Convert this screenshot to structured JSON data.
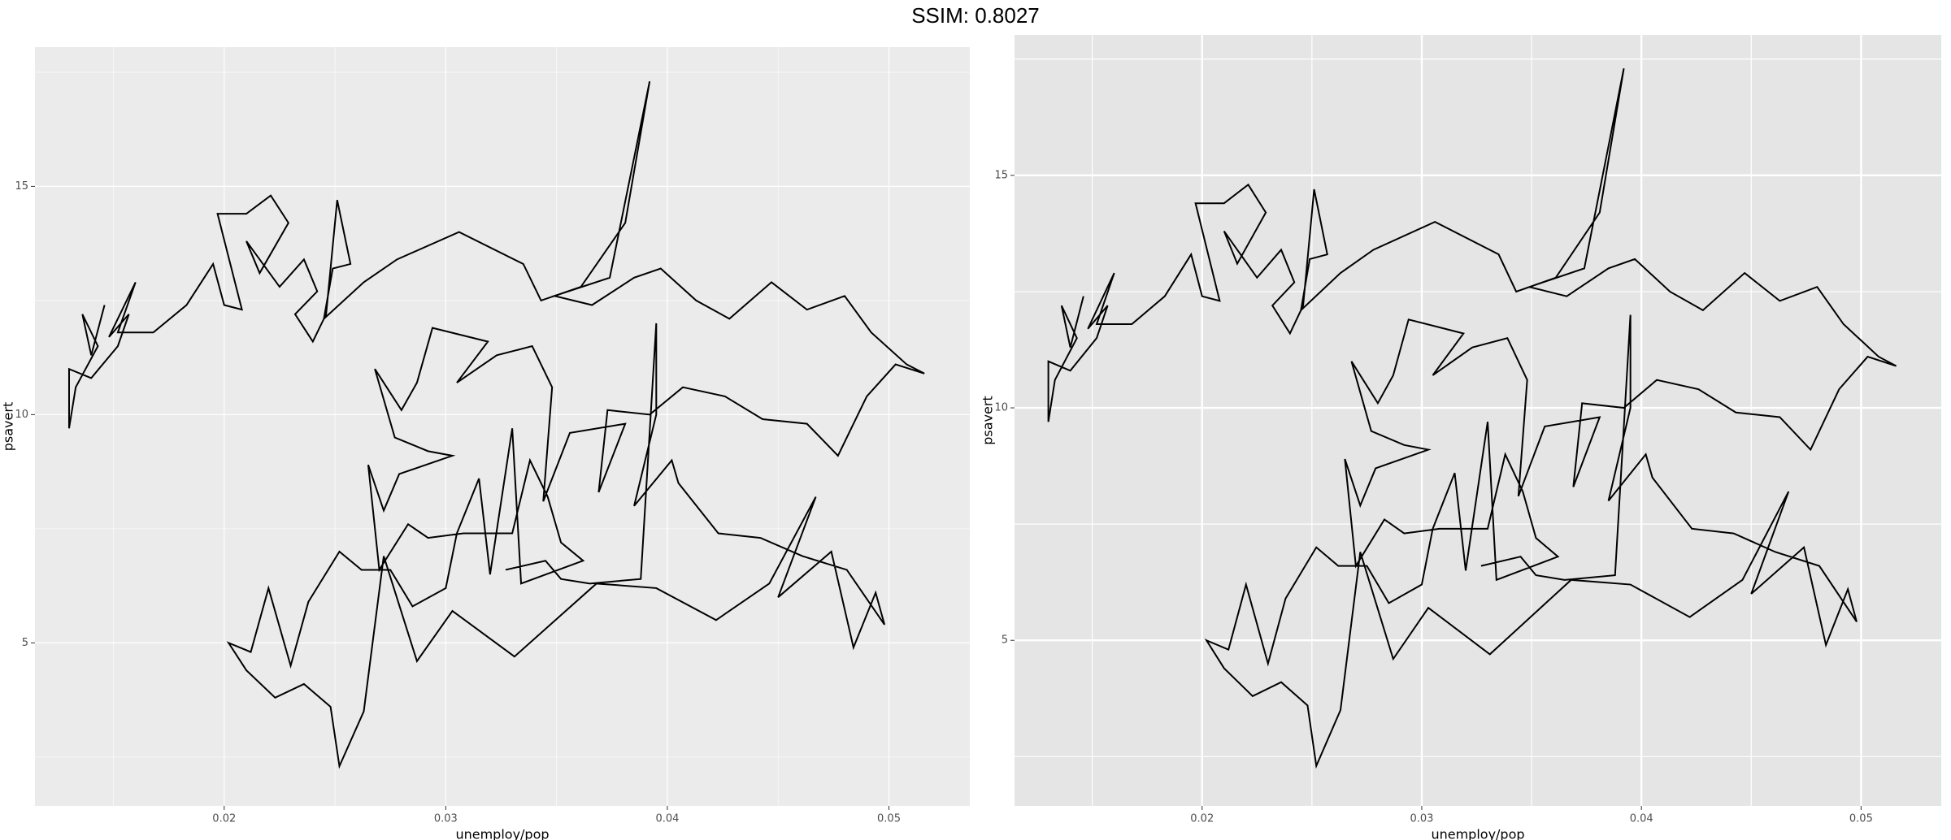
{
  "title": "SSIM: 0.8027",
  "chart_data": [
    {
      "type": "line",
      "xlabel": "unemploy/pop",
      "ylabel": "psavert",
      "background": "#EBEBEB",
      "grid": true,
      "xlim": [
        0.01146,
        0.05365
      ],
      "ylim": [
        1.43,
        18.05
      ],
      "xticks": [
        0.02,
        0.03,
        0.04,
        0.05
      ],
      "yticks": [
        5,
        10,
        15
      ],
      "minor_xticks": [
        0.015,
        0.025,
        0.035,
        0.045
      ],
      "minor_yticks": [
        2.5,
        7.5,
        12.5,
        17.5
      ],
      "x": [
        0.0146,
        0.014,
        0.0136,
        0.0143,
        0.0133,
        0.013,
        0.013,
        0.014,
        0.0152,
        0.0157,
        0.0148,
        0.016,
        0.0152,
        0.0168,
        0.0183,
        0.0195,
        0.02,
        0.0208,
        0.0197,
        0.021,
        0.0221,
        0.0229,
        0.0216,
        0.021,
        0.0225,
        0.0236,
        0.0242,
        0.0232,
        0.024,
        0.0246,
        0.0251,
        0.0257,
        0.0249,
        0.0245,
        0.0263,
        0.0278,
        0.0306,
        0.0335,
        0.0343,
        0.0361,
        0.0381,
        0.0392,
        0.0374,
        0.0349,
        0.0366,
        0.0385,
        0.0397,
        0.0413,
        0.0428,
        0.0447,
        0.0463,
        0.048,
        0.0492,
        0.0508,
        0.0516,
        0.0503,
        0.049,
        0.0477,
        0.0463,
        0.0443,
        0.0426,
        0.0407,
        0.0392,
        0.0373,
        0.0369,
        0.0381,
        0.0356,
        0.0344,
        0.0348,
        0.0339,
        0.0323,
        0.0305,
        0.0319,
        0.0294,
        0.0287,
        0.028,
        0.0268,
        0.0277,
        0.0292,
        0.0303,
        0.0279,
        0.0272,
        0.0265,
        0.027,
        0.0283,
        0.0292,
        0.0308,
        0.033,
        0.0338,
        0.0346,
        0.0352,
        0.0362,
        0.0334,
        0.033,
        0.032,
        0.0315,
        0.0305,
        0.03,
        0.0285,
        0.0275,
        0.0262,
        0.0252,
        0.0238,
        0.023,
        0.022,
        0.0212,
        0.0202,
        0.021,
        0.0223,
        0.0236,
        0.0248,
        0.0252,
        0.0263,
        0.0272,
        0.0287,
        0.0303,
        0.0331,
        0.0368,
        0.0395,
        0.0422,
        0.0446,
        0.0467,
        0.045,
        0.0474,
        0.0484,
        0.0494,
        0.0498,
        0.0481,
        0.0461,
        0.0442,
        0.0423,
        0.0405,
        0.0402,
        0.0385,
        0.0395,
        0.0395,
        0.0388,
        0.0365,
        0.0352,
        0.0345,
        0.0327
      ],
      "series": [
        {
          "color": "#000000",
          "values": [
            12.4,
            11.3,
            12.2,
            11.5,
            10.6,
            9.7,
            11.0,
            10.8,
            11.5,
            12.2,
            11.7,
            12.9,
            11.8,
            11.8,
            12.4,
            13.3,
            12.4,
            12.3,
            14.4,
            14.4,
            14.8,
            14.2,
            13.1,
            13.8,
            12.8,
            13.4,
            12.7,
            12.2,
            11.6,
            12.2,
            14.7,
            13.3,
            13.2,
            12.1,
            12.9,
            13.4,
            14.0,
            13.3,
            12.5,
            12.8,
            14.2,
            17.3,
            13.0,
            12.6,
            12.4,
            13.0,
            13.2,
            12.5,
            12.1,
            12.9,
            12.3,
            12.6,
            11.8,
            11.1,
            10.9,
            11.1,
            10.4,
            9.1,
            9.8,
            9.9,
            10.4,
            10.6,
            10.0,
            10.1,
            8.3,
            9.8,
            9.6,
            8.1,
            10.6,
            11.5,
            11.3,
            10.7,
            11.6,
            11.9,
            10.7,
            10.1,
            11.0,
            9.5,
            9.2,
            9.1,
            8.7,
            7.9,
            8.9,
            6.6,
            7.6,
            7.3,
            7.4,
            7.4,
            9.0,
            8.2,
            7.2,
            6.8,
            6.3,
            9.7,
            6.5,
            8.6,
            7.4,
            6.2,
            5.8,
            6.6,
            6.6,
            7.0,
            5.9,
            4.5,
            6.2,
            4.8,
            5.0,
            4.4,
            3.8,
            4.1,
            3.6,
            2.3,
            3.5,
            6.9,
            4.6,
            5.7,
            4.7,
            6.3,
            6.2,
            5.5,
            6.3,
            8.2,
            6.0,
            7.0,
            4.9,
            6.1,
            5.4,
            6.6,
            6.9,
            7.3,
            7.4,
            8.5,
            9.0,
            8.0,
            10.0,
            12.0,
            6.4,
            6.3,
            6.4,
            6.8,
            6.6
          ]
        }
      ]
    },
    {
      "type": "line",
      "xlabel": "unemploy/pop",
      "ylabel": "psavert",
      "background": "#E5E5E5",
      "grid": true,
      "xlim": [
        0.01146,
        0.05365
      ],
      "ylim": [
        1.44,
        18.02
      ],
      "xticks": [
        0.02,
        0.03,
        0.04,
        0.05
      ],
      "yticks": [
        5,
        10,
        15
      ],
      "minor_xticks": [
        0.015,
        0.025,
        0.035,
        0.045
      ],
      "minor_yticks": [
        2.5,
        7.5,
        12.5,
        17.5
      ],
      "x": [
        0.0146,
        0.014,
        0.0136,
        0.0143,
        0.0133,
        0.013,
        0.013,
        0.014,
        0.0152,
        0.0157,
        0.0148,
        0.016,
        0.0152,
        0.0168,
        0.0183,
        0.0195,
        0.02,
        0.0208,
        0.0197,
        0.021,
        0.0221,
        0.0229,
        0.0216,
        0.021,
        0.0225,
        0.0236,
        0.0242,
        0.0232,
        0.024,
        0.0246,
        0.0251,
        0.0257,
        0.0249,
        0.0245,
        0.0263,
        0.0278,
        0.0306,
        0.0335,
        0.0343,
        0.0361,
        0.0381,
        0.0392,
        0.0374,
        0.0349,
        0.0366,
        0.0385,
        0.0397,
        0.0413,
        0.0428,
        0.0447,
        0.0463,
        0.048,
        0.0492,
        0.0508,
        0.0516,
        0.0503,
        0.049,
        0.0477,
        0.0463,
        0.0443,
        0.0426,
        0.0407,
        0.0392,
        0.0373,
        0.0369,
        0.0381,
        0.0356,
        0.0344,
        0.0348,
        0.0339,
        0.0323,
        0.0305,
        0.0319,
        0.0294,
        0.0287,
        0.028,
        0.0268,
        0.0277,
        0.0292,
        0.0303,
        0.0279,
        0.0272,
        0.0265,
        0.027,
        0.0283,
        0.0292,
        0.0308,
        0.033,
        0.0338,
        0.0346,
        0.0352,
        0.0362,
        0.0334,
        0.033,
        0.032,
        0.0315,
        0.0305,
        0.03,
        0.0285,
        0.0275,
        0.0262,
        0.0252,
        0.0238,
        0.023,
        0.022,
        0.0212,
        0.0202,
        0.021,
        0.0223,
        0.0236,
        0.0248,
        0.0252,
        0.0263,
        0.0272,
        0.0287,
        0.0303,
        0.0331,
        0.0368,
        0.0395,
        0.0422,
        0.0446,
        0.0467,
        0.045,
        0.0474,
        0.0484,
        0.0494,
        0.0498,
        0.0481,
        0.0461,
        0.0442,
        0.0423,
        0.0405,
        0.0402,
        0.0385,
        0.0395,
        0.0395,
        0.0388,
        0.0365,
        0.0352,
        0.0345,
        0.0327
      ],
      "series": [
        {
          "color": "#000000",
          "values": [
            12.4,
            11.3,
            12.2,
            11.5,
            10.6,
            9.7,
            11.0,
            10.8,
            11.5,
            12.2,
            11.7,
            12.9,
            11.8,
            11.8,
            12.4,
            13.3,
            12.4,
            12.3,
            14.4,
            14.4,
            14.8,
            14.2,
            13.1,
            13.8,
            12.8,
            13.4,
            12.7,
            12.2,
            11.6,
            12.2,
            14.7,
            13.3,
            13.2,
            12.1,
            12.9,
            13.4,
            14.0,
            13.3,
            12.5,
            12.8,
            14.2,
            17.3,
            13.0,
            12.6,
            12.4,
            13.0,
            13.2,
            12.5,
            12.1,
            12.9,
            12.3,
            12.6,
            11.8,
            11.1,
            10.9,
            11.1,
            10.4,
            9.1,
            9.8,
            9.9,
            10.4,
            10.6,
            10.0,
            10.1,
            8.3,
            9.8,
            9.6,
            8.1,
            10.6,
            11.5,
            11.3,
            10.7,
            11.6,
            11.9,
            10.7,
            10.1,
            11.0,
            9.5,
            9.2,
            9.1,
            8.7,
            7.9,
            8.9,
            6.6,
            7.6,
            7.3,
            7.4,
            7.4,
            9.0,
            8.2,
            7.2,
            6.8,
            6.3,
            9.7,
            6.5,
            8.6,
            7.4,
            6.2,
            5.8,
            6.6,
            6.6,
            7.0,
            5.9,
            4.5,
            6.2,
            4.8,
            5.0,
            4.4,
            3.8,
            4.1,
            3.6,
            2.3,
            3.5,
            6.9,
            4.6,
            5.7,
            4.7,
            6.3,
            6.2,
            5.5,
            6.3,
            8.2,
            6.0,
            7.0,
            4.9,
            6.1,
            5.4,
            6.6,
            6.9,
            7.3,
            7.4,
            8.5,
            9.0,
            8.0,
            10.0,
            12.0,
            6.4,
            6.3,
            6.4,
            6.8,
            6.6
          ]
        }
      ]
    }
  ]
}
